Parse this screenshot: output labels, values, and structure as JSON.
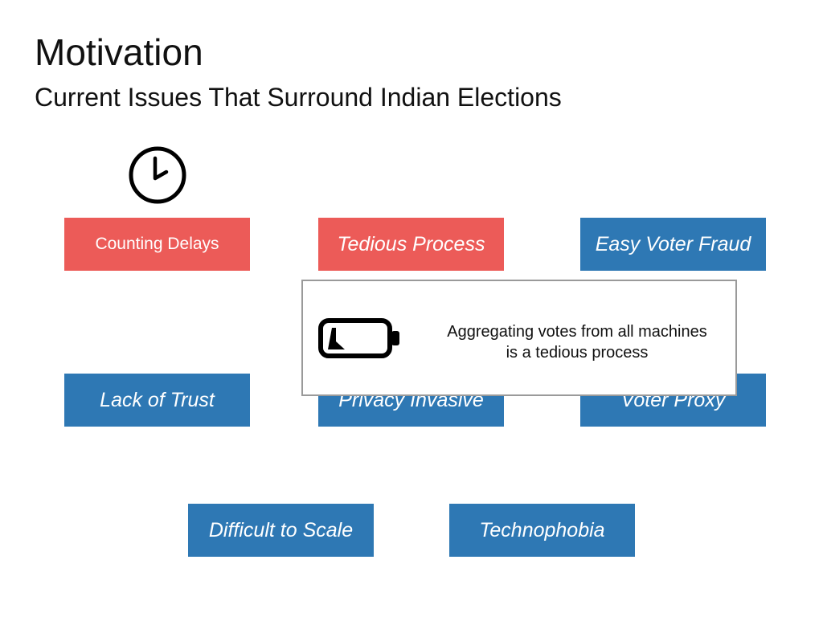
{
  "slide": {
    "title": "Motivation",
    "subtitle": "Current Issues That Surround Indian Elections"
  },
  "colors": {
    "active_issue": "#ec5b58",
    "issue": "#2e78b4",
    "tooltip_border": "#9a9a9a"
  },
  "issues": [
    {
      "label": "Counting Delays",
      "state": "active"
    },
    {
      "label": "Tedious Process",
      "state": "active"
    },
    {
      "label": "Easy Voter Fraud",
      "state": "normal"
    },
    {
      "label": "Lack of Trust",
      "state": "normal"
    },
    {
      "label": "Privacy Invasive",
      "state": "normal"
    },
    {
      "label": "Voter Proxy",
      "state": "normal"
    },
    {
      "label": "Difficult to Scale",
      "state": "normal"
    },
    {
      "label": "Technophobia",
      "state": "normal"
    }
  ],
  "icons": {
    "above_counting_delays": "clock-icon",
    "tooltip": "low-battery-icon"
  },
  "tooltip": {
    "line1": "Aggregating votes from all machines",
    "line2": "is a tedious process"
  }
}
